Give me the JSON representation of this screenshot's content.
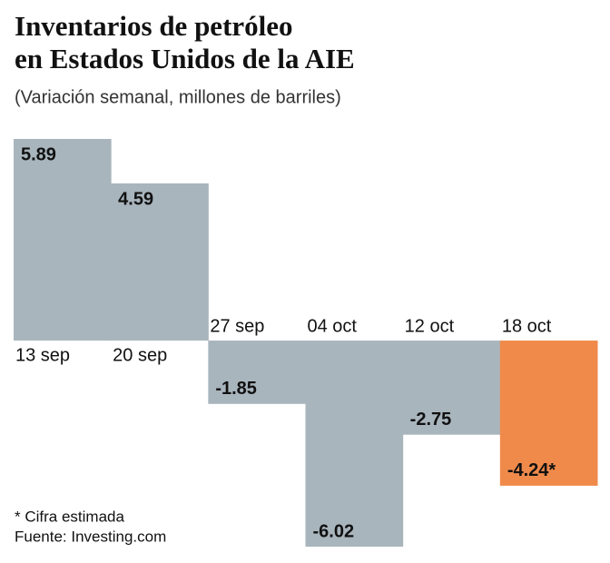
{
  "chart_data": {
    "type": "bar",
    "title": [
      "Inventarios de petróleo",
      "en Estados Unidos de la AIE"
    ],
    "subtitle": "(Variación semanal, millones de barriles)",
    "categories": [
      "13 sep",
      "20 sep",
      "27 sep",
      "04 oct",
      "12 oct",
      "18 oct"
    ],
    "values": [
      5.89,
      4.59,
      -1.85,
      -6.02,
      -2.75,
      -4.24
    ],
    "value_labels": [
      "5.89",
      "4.59",
      "-1.85",
      "-6.02",
      "-2.75",
      "-4.24*"
    ],
    "colors": [
      "#a9b5bd",
      "#a9b5bd",
      "#a9b5bd",
      "#a9b5bd",
      "#a9b5bd",
      "#f08a4b"
    ],
    "notes": [
      "* Cifra estimada",
      "Fuente: Investing.com"
    ]
  }
}
